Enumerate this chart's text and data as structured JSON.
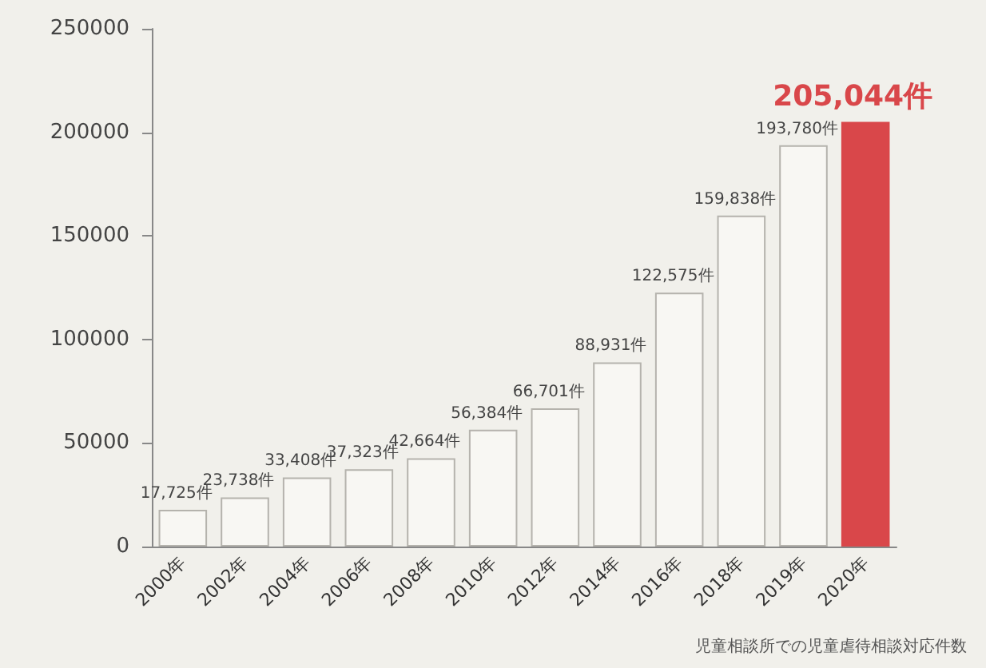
{
  "chart_data": {
    "type": "bar",
    "categories": [
      "2000年",
      "2002年",
      "2004年",
      "2006年",
      "2008年",
      "2010年",
      "2012年",
      "2014年",
      "2016年",
      "2018年",
      "2019年",
      "2020年"
    ],
    "values": [
      17725,
      23738,
      33408,
      37323,
      42664,
      56384,
      66701,
      88931,
      122575,
      159838,
      193780,
      205044
    ],
    "value_labels": [
      "17,725件",
      "23,738件",
      "33,408件",
      "37,323件",
      "42,664件",
      "56,384件",
      "66,701件",
      "88,931件",
      "122,575件",
      "159,838件",
      "193,780件",
      "205,044件"
    ],
    "colors": [
      "#f8f7f3",
      "#f8f7f3",
      "#f8f7f3",
      "#f8f7f3",
      "#f8f7f3",
      "#f8f7f3",
      "#f8f7f3",
      "#f8f7f3",
      "#f8f7f3",
      "#f8f7f3",
      "#f8f7f3",
      "#d9474a"
    ],
    "ylim": [
      0,
      250000
    ],
    "yticks": [
      0,
      50000,
      100000,
      150000,
      200000,
      250000
    ],
    "grid": false,
    "annotations": [
      "児童相談所での児童虐待相談対応件数"
    ]
  }
}
